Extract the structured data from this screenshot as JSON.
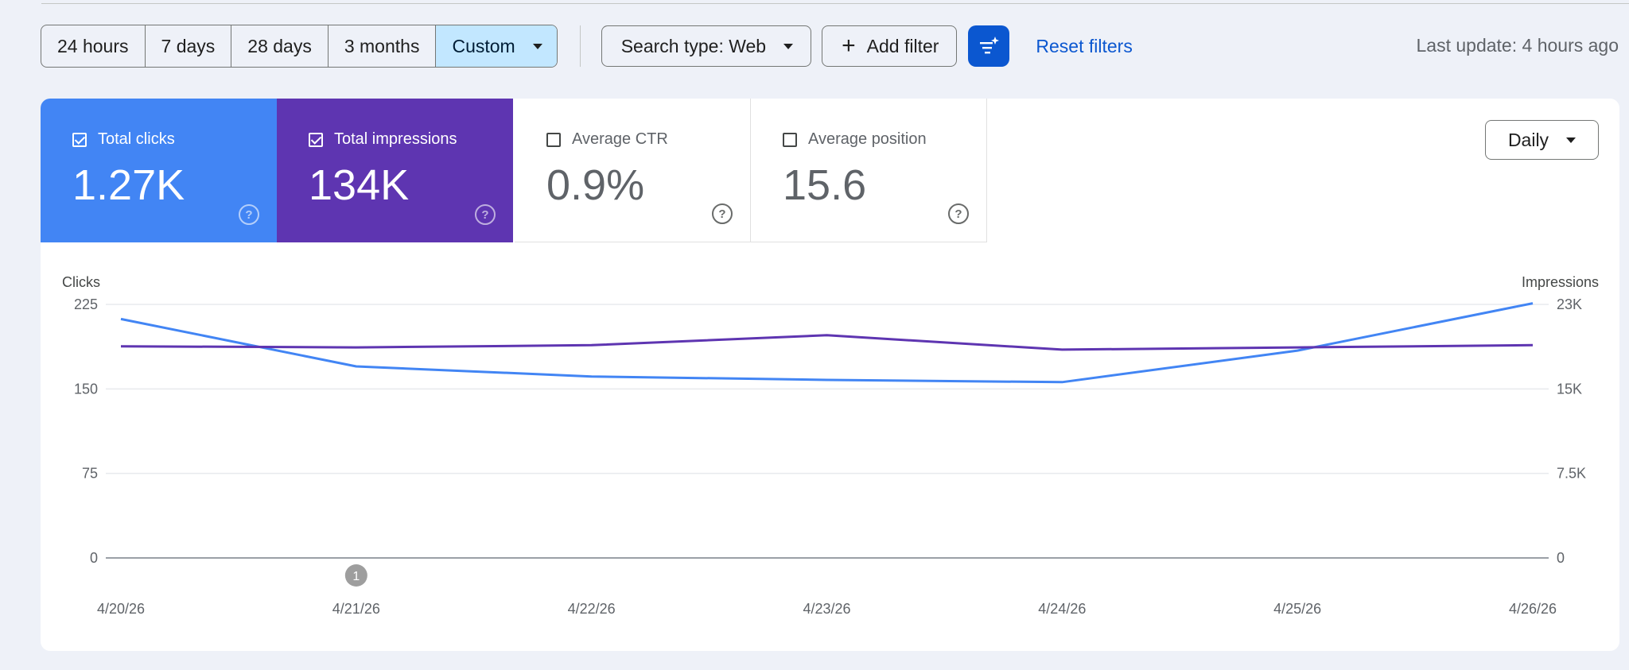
{
  "filters": {
    "ranges": [
      {
        "label": "24 hours",
        "active": false
      },
      {
        "label": "7 days",
        "active": false
      },
      {
        "label": "28 days",
        "active": false
      },
      {
        "label": "3 months",
        "active": false
      },
      {
        "label": "Custom",
        "active": true
      }
    ],
    "search_type": "Search type: Web",
    "add_filter": "Add filter",
    "reset": "Reset filters",
    "last_update": "Last update: 4 hours ago"
  },
  "metrics": [
    {
      "label": "Total clicks",
      "value": "1.27K",
      "checked": true,
      "color": "#4285f4"
    },
    {
      "label": "Total impressions",
      "value": "134K",
      "checked": true,
      "color": "#5e35b1"
    },
    {
      "label": "Average CTR",
      "value": "0.9%",
      "checked": false
    },
    {
      "label": "Average position",
      "value": "15.6",
      "checked": false
    }
  ],
  "granularity": "Daily",
  "chart_data": {
    "type": "line",
    "x": [
      "4/20/26",
      "4/21/26",
      "4/22/26",
      "4/23/26",
      "4/24/26",
      "4/25/26",
      "4/26/26"
    ],
    "series": [
      {
        "name": "Clicks",
        "axis": "left",
        "color": "#4285f4",
        "values": [
          212,
          170,
          161,
          158,
          156,
          184,
          226
        ]
      },
      {
        "name": "Impressions",
        "axis": "right",
        "color": "#5e35b1",
        "values": [
          19200,
          19100,
          19300,
          20200,
          18900,
          19100,
          19300
        ]
      }
    ],
    "ylabel_left": "Clicks",
    "ylabel_right": "Impressions",
    "yticks_left": [
      "0",
      "75",
      "150",
      "225"
    ],
    "yticks_right": [
      "0",
      "7.5K",
      "15K",
      "23K"
    ],
    "ylim_left": [
      0,
      225
    ],
    "ylim_right": [
      0,
      23000
    ],
    "annotations": [
      {
        "x": "4/21/26",
        "label": "1"
      }
    ],
    "grid": true
  }
}
